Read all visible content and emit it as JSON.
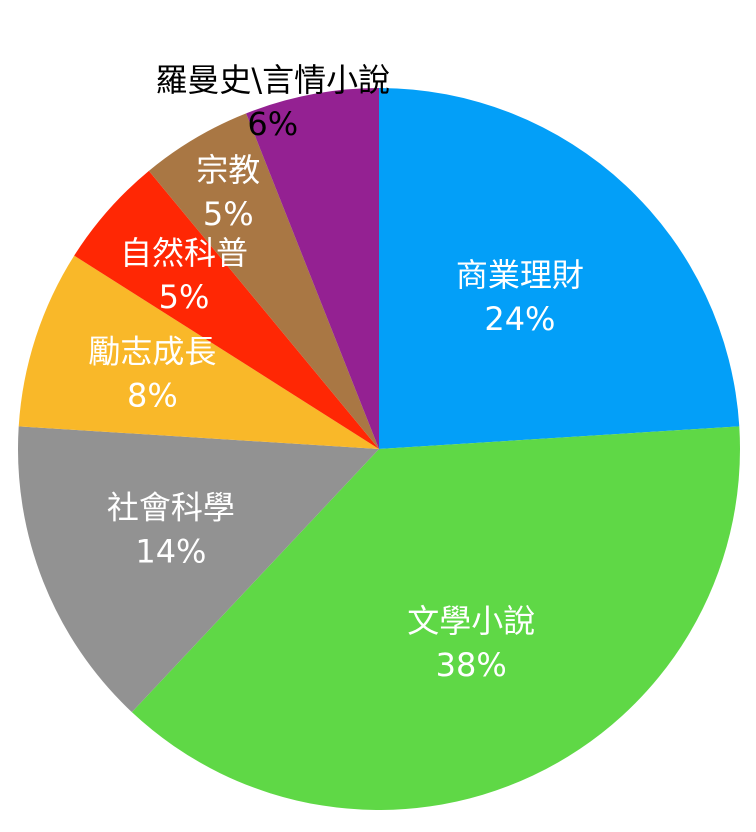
{
  "chart_data": {
    "type": "pie",
    "title": "",
    "start": "12 o'clock",
    "direction": "clockwise",
    "slices": [
      {
        "label": "商業理財",
        "value": 24,
        "value_label": "24%",
        "color": "#039FF8",
        "text_color": "#ffffff"
      },
      {
        "label": "文學小說",
        "value": 38,
        "value_label": "38%",
        "color": "#5FD846",
        "text_color": "#ffffff"
      },
      {
        "label": "社會科學",
        "value": 14,
        "value_label": "14%",
        "color": "#929292",
        "text_color": "#ffffff"
      },
      {
        "label": "勵志成長",
        "value": 8,
        "value_label": "8%",
        "color": "#F9B829",
        "text_color": "#ffffff"
      },
      {
        "label": "自然科普",
        "value": 5,
        "value_label": "5%",
        "color": "#FF2704",
        "text_color": "#ffffff"
      },
      {
        "label": "宗教",
        "value": 5,
        "value_label": "5%",
        "color": "#A97744",
        "text_color": "#ffffff"
      },
      {
        "label": "羅曼史\\言情小說",
        "value": 6,
        "value_label": "6%",
        "color": "#942192",
        "text_color": "#000000"
      }
    ]
  }
}
